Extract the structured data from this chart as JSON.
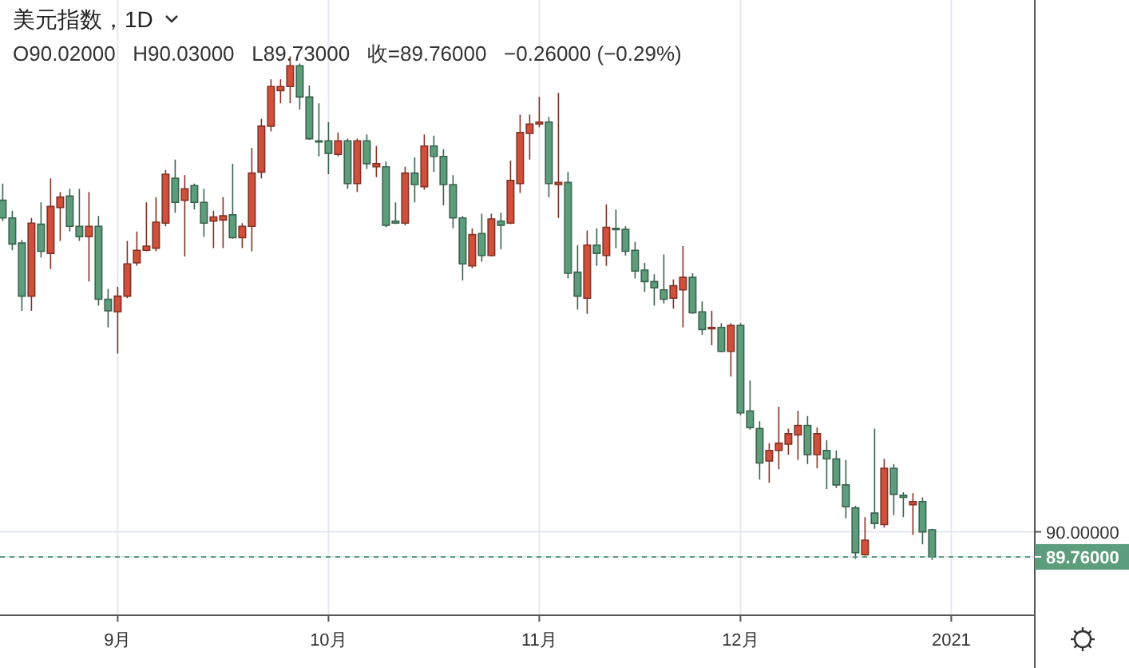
{
  "chart_data": {
    "type": "candlestick",
    "title": "美元指数，1D",
    "subtitle": "O90.02000   H90.03000   L89.73000   收=89.76000   −0.26000 (−0.29%)",
    "categories": [
      null,
      null,
      null,
      null,
      null,
      null,
      null,
      null,
      null,
      null,
      null,
      null,
      "9月",
      null,
      null,
      null,
      null,
      null,
      null,
      null,
      null,
      null,
      null,
      null,
      null,
      null,
      null,
      null,
      null,
      null,
      null,
      null,
      null,
      null,
      "10月",
      null,
      null,
      null,
      null,
      null,
      null,
      null,
      null,
      null,
      null,
      null,
      null,
      null,
      null,
      null,
      null,
      null,
      null,
      null,
      null,
      null,
      "11月",
      null,
      null,
      null,
      null,
      null,
      null,
      null,
      null,
      null,
      null,
      null,
      null,
      null,
      null,
      null,
      null,
      null,
      null,
      null,
      null,
      "12月",
      null,
      null,
      null,
      null,
      null,
      null,
      null,
      null,
      null,
      null,
      null,
      null,
      null,
      null,
      null,
      null,
      null,
      null,
      null,
      null,
      null,
      "2021"
    ],
    "ohlc": [
      [
        93.18,
        93.34,
        92.98,
        93.01
      ],
      [
        93.01,
        93.08,
        92.7,
        92.76
      ],
      [
        92.77,
        92.8,
        92.12,
        92.26
      ],
      [
        92.26,
        93.01,
        92.12,
        92.96
      ],
      [
        92.95,
        93.16,
        92.63,
        92.69
      ],
      [
        92.67,
        93.39,
        92.52,
        93.12
      ],
      [
        93.11,
        93.26,
        92.79,
        93.21
      ],
      [
        93.22,
        93.29,
        92.88,
        92.93
      ],
      [
        92.93,
        93.29,
        92.79,
        92.83
      ],
      [
        92.83,
        93.26,
        92.4,
        92.93
      ],
      [
        92.93,
        93.03,
        92.17,
        92.23
      ],
      [
        92.23,
        92.33,
        91.96,
        92.12
      ],
      [
        92.11,
        92.35,
        91.71,
        92.26
      ],
      [
        92.26,
        92.79,
        92.24,
        92.57
      ],
      [
        92.58,
        92.88,
        92.55,
        92.7
      ],
      [
        92.7,
        93.16,
        92.69,
        92.74
      ],
      [
        92.72,
        93.21,
        92.69,
        92.97
      ],
      [
        92.96,
        93.47,
        92.93,
        93.43
      ],
      [
        93.39,
        93.57,
        93.06,
        93.16
      ],
      [
        93.18,
        93.42,
        92.64,
        93.29
      ],
      [
        93.32,
        93.34,
        93.09,
        93.16
      ],
      [
        93.16,
        93.29,
        92.83,
        92.96
      ],
      [
        92.98,
        93.08,
        92.72,
        93.02
      ],
      [
        92.99,
        93.21,
        92.72,
        93.03
      ],
      [
        93.04,
        93.53,
        92.81,
        92.82
      ],
      [
        92.82,
        92.96,
        92.72,
        92.93
      ],
      [
        92.93,
        93.68,
        92.69,
        93.44
      ],
      [
        93.45,
        93.96,
        93.39,
        93.89
      ],
      [
        93.89,
        94.34,
        93.84,
        94.27
      ],
      [
        94.23,
        94.34,
        94.11,
        94.27
      ],
      [
        94.27,
        94.56,
        94.11,
        94.47
      ],
      [
        94.47,
        94.49,
        94.05,
        94.17
      ],
      [
        94.17,
        94.28,
        93.76,
        93.77
      ],
      [
        93.75,
        94.11,
        93.6,
        93.74
      ],
      [
        93.75,
        93.93,
        93.43,
        93.63
      ],
      [
        93.62,
        93.83,
        93.6,
        93.75
      ],
      [
        93.75,
        93.77,
        93.29,
        93.34
      ],
      [
        93.34,
        93.77,
        93.26,
        93.75
      ],
      [
        93.75,
        93.81,
        93.48,
        93.53
      ],
      [
        93.5,
        93.7,
        93.4,
        93.53
      ],
      [
        93.5,
        93.55,
        92.92,
        92.94
      ],
      [
        92.98,
        93.16,
        92.95,
        92.96
      ],
      [
        92.96,
        93.5,
        92.94,
        93.44
      ],
      [
        93.44,
        93.59,
        93.16,
        93.33
      ],
      [
        93.31,
        93.81,
        93.28,
        93.7
      ],
      [
        93.7,
        93.8,
        93.45,
        93.6
      ],
      [
        93.6,
        93.67,
        93.13,
        93.33
      ],
      [
        93.33,
        93.42,
        92.91,
        93.01
      ],
      [
        93.01,
        93.03,
        92.41,
        92.57
      ],
      [
        92.55,
        92.91,
        92.53,
        92.85
      ],
      [
        92.86,
        93.05,
        92.59,
        92.65
      ],
      [
        92.65,
        93.05,
        92.64,
        93.0
      ],
      [
        92.98,
        93.06,
        92.71,
        92.94
      ],
      [
        92.96,
        93.56,
        92.95,
        93.37
      ],
      [
        93.34,
        94.0,
        93.25,
        93.83
      ],
      [
        93.82,
        94.0,
        93.57,
        93.91
      ],
      [
        93.91,
        94.17,
        93.88,
        93.93
      ],
      [
        93.93,
        93.98,
        93.21,
        93.34
      ],
      [
        93.33,
        94.21,
        93.01,
        93.35
      ],
      [
        93.35,
        93.45,
        92.43,
        92.48
      ],
      [
        92.49,
        92.75,
        92.13,
        92.26
      ],
      [
        92.24,
        92.89,
        92.09,
        92.75
      ],
      [
        92.75,
        92.91,
        92.55,
        92.67
      ],
      [
        92.65,
        93.14,
        92.55,
        92.92
      ],
      [
        92.91,
        93.09,
        92.72,
        92.9
      ],
      [
        92.9,
        92.93,
        92.65,
        92.69
      ],
      [
        92.7,
        92.78,
        92.43,
        92.5
      ],
      [
        92.51,
        92.58,
        92.3,
        92.4
      ],
      [
        92.4,
        92.47,
        92.17,
        92.34
      ],
      [
        92.32,
        92.66,
        92.19,
        92.23
      ],
      [
        92.24,
        92.42,
        92.14,
        92.36
      ],
      [
        92.32,
        92.74,
        91.96,
        92.44
      ],
      [
        92.44,
        92.48,
        92.09,
        92.1
      ],
      [
        92.11,
        92.21,
        91.89,
        91.94
      ],
      [
        91.95,
        92.12,
        91.79,
        91.96
      ],
      [
        91.96,
        92.0,
        91.72,
        91.73
      ],
      [
        91.73,
        92.0,
        91.49,
        91.98
      ],
      [
        91.98,
        92.0,
        91.12,
        91.14
      ],
      [
        91.16,
        91.45,
        90.98,
        91.0
      ],
      [
        90.99,
        91.06,
        90.5,
        90.66
      ],
      [
        90.68,
        90.85,
        90.47,
        90.78
      ],
      [
        90.78,
        91.2,
        90.6,
        90.85
      ],
      [
        90.84,
        90.99,
        90.74,
        90.94
      ],
      [
        90.93,
        91.16,
        90.69,
        91.02
      ],
      [
        91.02,
        91.11,
        90.65,
        90.74
      ],
      [
        90.74,
        91.0,
        90.61,
        90.94
      ],
      [
        90.78,
        90.88,
        90.41,
        90.7
      ],
      [
        90.7,
        90.78,
        90.42,
        90.45
      ],
      [
        90.45,
        90.69,
        90.13,
        90.24
      ],
      [
        90.23,
        90.25,
        89.74,
        89.8
      ],
      [
        89.78,
        90.14,
        89.77,
        89.92
      ],
      [
        90.18,
        90.99,
        90.03,
        90.08
      ],
      [
        90.07,
        90.7,
        90.04,
        90.61
      ],
      [
        90.61,
        90.65,
        90.16,
        90.36
      ],
      [
        90.35,
        90.38,
        90.14,
        90.33
      ],
      [
        90.26,
        90.37,
        89.97,
        90.29
      ],
      [
        90.29,
        90.33,
        89.88,
        90.0
      ],
      [
        90.02,
        90.03,
        89.73,
        89.76
      ],
      null,
      null
    ],
    "colors": [
      "#5c9e7c",
      "#5c9e7c",
      "#5c9e7c",
      "#d0503c",
      "#5c9e7c",
      "#d0503c",
      "#d0503c",
      "#5c9e7c",
      "#5c9e7c",
      "#d0503c",
      "#5c9e7c",
      "#5c9e7c",
      "#d0503c",
      "#d0503c",
      "#d0503c",
      "#d0503c",
      "#d0503c",
      "#d0503c",
      "#5c9e7c",
      "#d0503c",
      "#5c9e7c",
      "#5c9e7c",
      "#d0503c",
      "#d0503c",
      "#5c9e7c",
      "#d0503c",
      "#d0503c",
      "#d0503c",
      "#d0503c",
      "#d0503c",
      "#d0503c",
      "#5c9e7c",
      "#5c9e7c",
      "#5c9e7c",
      "#5c9e7c",
      "#d0503c",
      "#5c9e7c",
      "#d0503c",
      "#5c9e7c",
      "#d0503c",
      "#5c9e7c",
      "#5c9e7c",
      "#d0503c",
      "#5c9e7c",
      "#d0503c",
      "#5c9e7c",
      "#5c9e7c",
      "#5c9e7c",
      "#5c9e7c",
      "#d0503c",
      "#5c9e7c",
      "#d0503c",
      "#5c9e7c",
      "#d0503c",
      "#d0503c",
      "#d0503c",
      "#d0503c",
      "#5c9e7c",
      "#d0503c",
      "#5c9e7c",
      "#5c9e7c",
      "#d0503c",
      "#5c9e7c",
      "#d0503c",
      "#5c9e7c",
      "#5c9e7c",
      "#5c9e7c",
      "#5c9e7c",
      "#5c9e7c",
      "#5c9e7c",
      "#d0503c",
      "#d0503c",
      "#5c9e7c",
      "#5c9e7c",
      "#d0503c",
      "#5c9e7c",
      "#d0503c",
      "#5c9e7c",
      "#5c9e7c",
      "#5c9e7c",
      "#d0503c",
      "#d0503c",
      "#d0503c",
      "#d0503c",
      "#5c9e7c",
      "#d0503c",
      "#5c9e7c",
      "#5c9e7c",
      "#5c9e7c",
      "#5c9e7c",
      "#d0503c",
      "#5c9e7c",
      "#d0503c",
      "#5c9e7c",
      "#5c9e7c",
      "#d0503c",
      "#5c9e7c",
      "#5c9e7c",
      null,
      null
    ],
    "ylim": [
      89.2,
      95.1
    ],
    "yticks": [
      {
        "value": 90,
        "label": "90.00000"
      },
      {
        "value": 89.76,
        "label": "89.76000"
      }
    ],
    "ref_lines": [
      {
        "axis": "y",
        "value": 89.76,
        "color": "#5c9e7c",
        "line_style": "dashed"
      }
    ],
    "grid": true
  }
}
